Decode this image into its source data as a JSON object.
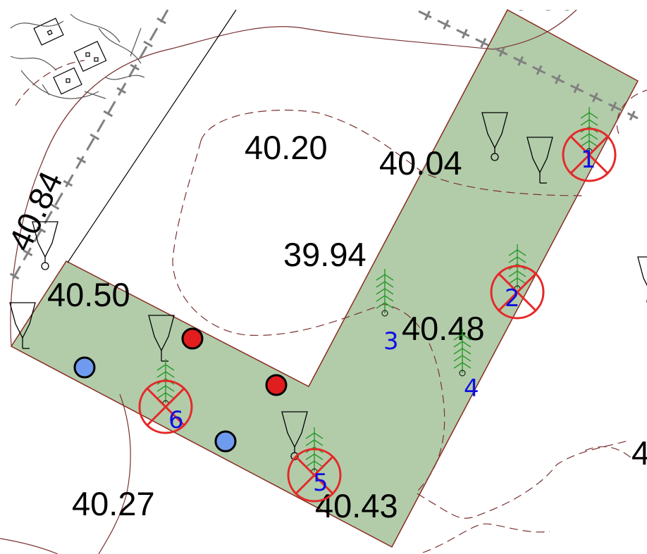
{
  "colors": {
    "plot_fill": "#b2ccaa",
    "plot_edge": "#8a2a20",
    "contour": "#7a3030",
    "fence": "#808080",
    "tree": "#2a9a2a",
    "removal_mark": "#e52828",
    "tree_number": "#1010e0",
    "point_red": "#e11d1d",
    "point_blue": "#6f9bef"
  },
  "elevations": {
    "e1": "40.20",
    "e2": "40.04",
    "e3": "39.94",
    "e4": "40.50",
    "e5": "40.48",
    "e6": "40.27",
    "e7": "40.43",
    "e_top_partial": "40.50",
    "e_left_partial": "40.84",
    "e_right_partial": "4"
  },
  "trees": [
    {
      "number": "1",
      "status": "remove"
    },
    {
      "number": "2",
      "status": "remove"
    },
    {
      "number": "3",
      "status": "keep"
    },
    {
      "number": "4",
      "status": "keep"
    },
    {
      "number": "5",
      "status": "remove"
    },
    {
      "number": "6",
      "status": "remove"
    }
  ],
  "icons": {
    "tree": "conifer-tree-icon",
    "removal": "removal-cross-circle-icon",
    "lamp": "street-lamp-icon",
    "house": "house-icon",
    "point": "marker-dot-icon"
  }
}
